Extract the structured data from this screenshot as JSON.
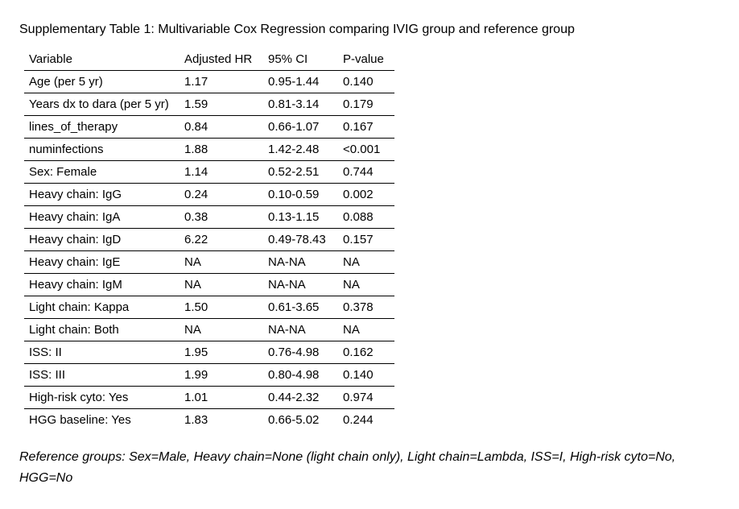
{
  "title": "Supplementary Table 1: Multivariable Cox Regression comparing IVIG group and reference group",
  "table": {
    "columns": [
      "Variable",
      "Adjusted HR",
      "95% CI",
      "P-value"
    ],
    "rows": [
      [
        "Age (per 5 yr)",
        "1.17",
        "0.95-1.44",
        "0.140"
      ],
      [
        "Years dx to dara (per 5 yr)",
        "1.59",
        "0.81-3.14",
        "0.179"
      ],
      [
        "lines_of_therapy",
        "0.84",
        "0.66-1.07",
        "0.167"
      ],
      [
        "numinfections",
        "1.88",
        "1.42-2.48",
        "<0.001"
      ],
      [
        "Sex: Female",
        "1.14",
        "0.52-2.51",
        "0.744"
      ],
      [
        "Heavy chain: IgG",
        "0.24",
        "0.10-0.59",
        "0.002"
      ],
      [
        "Heavy chain: IgA",
        "0.38",
        "0.13-1.15",
        "0.088"
      ],
      [
        "Heavy chain: IgD",
        "6.22",
        "0.49-78.43",
        "0.157"
      ],
      [
        "Heavy chain: IgE",
        "NA",
        "NA-NA",
        "NA"
      ],
      [
        "Heavy chain: IgM",
        "NA",
        "NA-NA",
        "NA"
      ],
      [
        "Light chain: Kappa",
        "1.50",
        "0.61-3.65",
        "0.378"
      ],
      [
        "Light chain: Both",
        "NA",
        "NA-NA",
        "NA"
      ],
      [
        "ISS: II",
        "1.95",
        "0.76-4.98",
        "0.162"
      ],
      [
        "ISS: III",
        "1.99",
        "0.80-4.98",
        "0.140"
      ],
      [
        "High-risk cyto: Yes",
        "1.01",
        "0.44-2.32",
        "0.974"
      ],
      [
        "HGG baseline: Yes",
        "1.83",
        "0.66-5.02",
        "0.244"
      ]
    ]
  },
  "footnote": "Reference groups: Sex=Male, Heavy chain=None (light chain only), Light chain=Lambda, ISS=I, High-risk cyto=No, HGG=No",
  "colors": {
    "text": "#000000",
    "background": "#ffffff",
    "rule": "#000000"
  }
}
